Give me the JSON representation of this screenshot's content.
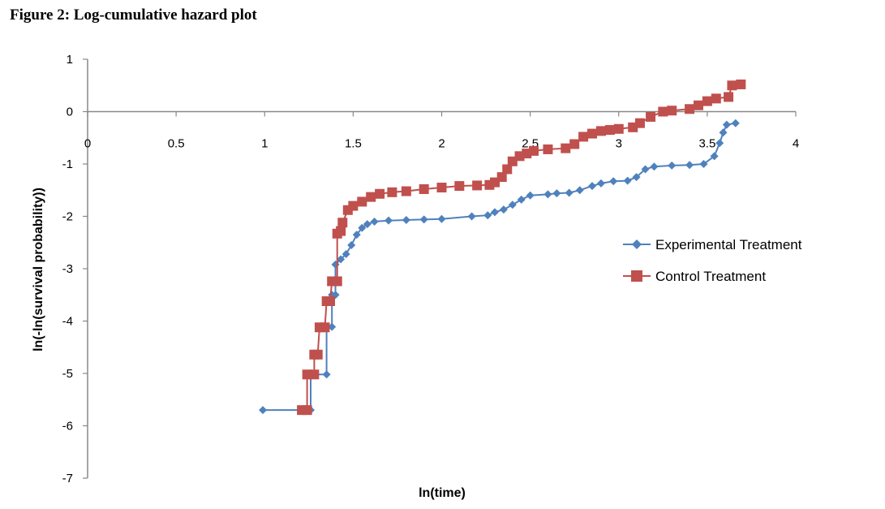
{
  "chart_data": {
    "type": "line",
    "title": "Figure 2: Log-cumulative hazard plot",
    "xlabel": "ln(time)",
    "ylabel": "ln(-ln(survival probability))",
    "xlim": [
      0,
      4
    ],
    "ylim": [
      -7,
      1
    ],
    "xticks": [
      "0",
      "0.5",
      "1",
      "1.5",
      "2",
      "2.5",
      "3",
      "3.5",
      "4"
    ],
    "yticks": [
      "1",
      "0",
      "-1",
      "-2",
      "-3",
      "-4",
      "-5",
      "-6",
      "-7"
    ],
    "legend_position": "right",
    "series": [
      {
        "name": "Experimental Treatment",
        "color": "#4f81bd",
        "marker": "diamond",
        "points": [
          [
            0.99,
            -5.7
          ],
          [
            1.26,
            -5.7
          ],
          [
            1.26,
            -5.02
          ],
          [
            1.35,
            -5.02
          ],
          [
            1.35,
            -4.11
          ],
          [
            1.38,
            -4.11
          ],
          [
            1.38,
            -3.5
          ],
          [
            1.4,
            -3.5
          ],
          [
            1.4,
            -2.92
          ],
          [
            1.43,
            -2.82
          ],
          [
            1.46,
            -2.72
          ],
          [
            1.49,
            -2.55
          ],
          [
            1.52,
            -2.35
          ],
          [
            1.55,
            -2.22
          ],
          [
            1.58,
            -2.15
          ],
          [
            1.62,
            -2.1
          ],
          [
            1.7,
            -2.08
          ],
          [
            1.8,
            -2.07
          ],
          [
            1.9,
            -2.06
          ],
          [
            2.0,
            -2.05
          ],
          [
            2.17,
            -2.0
          ],
          [
            2.26,
            -1.98
          ],
          [
            2.3,
            -1.92
          ],
          [
            2.35,
            -1.87
          ],
          [
            2.4,
            -1.78
          ],
          [
            2.45,
            -1.68
          ],
          [
            2.5,
            -1.6
          ],
          [
            2.6,
            -1.58
          ],
          [
            2.65,
            -1.56
          ],
          [
            2.72,
            -1.55
          ],
          [
            2.78,
            -1.5
          ],
          [
            2.85,
            -1.42
          ],
          [
            2.9,
            -1.37
          ],
          [
            2.97,
            -1.33
          ],
          [
            3.05,
            -1.32
          ],
          [
            3.1,
            -1.25
          ],
          [
            3.15,
            -1.1
          ],
          [
            3.2,
            -1.05
          ],
          [
            3.3,
            -1.03
          ],
          [
            3.4,
            -1.02
          ],
          [
            3.48,
            -1.0
          ],
          [
            3.54,
            -0.85
          ],
          [
            3.57,
            -0.6
          ],
          [
            3.59,
            -0.4
          ],
          [
            3.61,
            -0.25
          ],
          [
            3.66,
            -0.22
          ]
        ]
      },
      {
        "name": "Control Treatment",
        "color": "#c0504d",
        "marker": "square",
        "points": [
          [
            1.21,
            -5.7
          ],
          [
            1.24,
            -5.7
          ],
          [
            1.24,
            -5.02
          ],
          [
            1.28,
            -5.02
          ],
          [
            1.28,
            -4.64
          ],
          [
            1.3,
            -4.64
          ],
          [
            1.31,
            -4.12
          ],
          [
            1.34,
            -4.12
          ],
          [
            1.35,
            -3.62
          ],
          [
            1.37,
            -3.62
          ],
          [
            1.38,
            -3.24
          ],
          [
            1.41,
            -3.24
          ],
          [
            1.41,
            -2.33
          ],
          [
            1.43,
            -2.28
          ],
          [
            1.44,
            -2.12
          ],
          [
            1.47,
            -1.88
          ],
          [
            1.5,
            -1.8
          ],
          [
            1.55,
            -1.72
          ],
          [
            1.6,
            -1.63
          ],
          [
            1.65,
            -1.57
          ],
          [
            1.72,
            -1.54
          ],
          [
            1.8,
            -1.52
          ],
          [
            1.9,
            -1.48
          ],
          [
            2.0,
            -1.45
          ],
          [
            2.1,
            -1.42
          ],
          [
            2.2,
            -1.41
          ],
          [
            2.27,
            -1.4
          ],
          [
            2.3,
            -1.35
          ],
          [
            2.34,
            -1.25
          ],
          [
            2.37,
            -1.1
          ],
          [
            2.4,
            -0.95
          ],
          [
            2.44,
            -0.85
          ],
          [
            2.48,
            -0.8
          ],
          [
            2.52,
            -0.75
          ],
          [
            2.6,
            -0.72
          ],
          [
            2.7,
            -0.7
          ],
          [
            2.75,
            -0.62
          ],
          [
            2.8,
            -0.48
          ],
          [
            2.85,
            -0.42
          ],
          [
            2.9,
            -0.37
          ],
          [
            2.95,
            -0.35
          ],
          [
            3.0,
            -0.33
          ],
          [
            3.08,
            -0.3
          ],
          [
            3.12,
            -0.22
          ],
          [
            3.18,
            -0.1
          ],
          [
            3.25,
            0.0
          ],
          [
            3.3,
            0.02
          ],
          [
            3.4,
            0.05
          ],
          [
            3.45,
            0.12
          ],
          [
            3.5,
            0.2
          ],
          [
            3.55,
            0.25
          ],
          [
            3.62,
            0.28
          ],
          [
            3.64,
            0.5
          ],
          [
            3.69,
            0.52
          ]
        ]
      }
    ]
  }
}
